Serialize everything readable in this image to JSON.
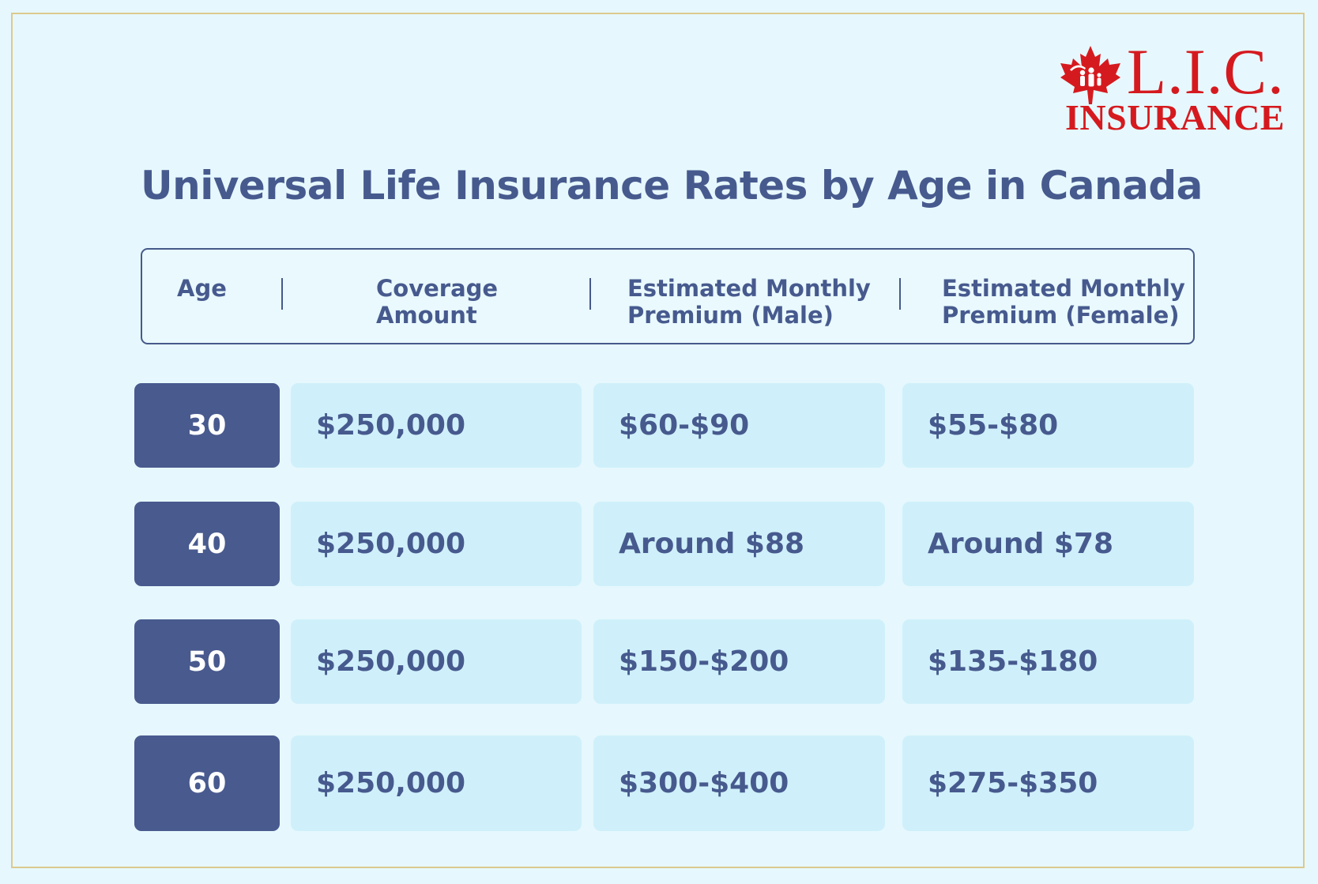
{
  "logo": {
    "top_text": "L.I.C.",
    "bottom_text": "INSURANCE",
    "icon": "maple-leaf-family-icon"
  },
  "title": "Universal Life Insurance Rates by Age in Canada",
  "table": {
    "headers": {
      "age": "Age",
      "coverage_line1": "Coverage",
      "coverage_line2": "Amount",
      "male_line1": "Estimated Monthly",
      "male_line2": "Premium (Male)",
      "female_line1": "Estimated Monthly",
      "female_line2": "Premium (Female)"
    },
    "rows": [
      {
        "age": "30",
        "coverage": "$250,000",
        "male": "$60-$90",
        "female": "$55-$80"
      },
      {
        "age": "40",
        "coverage": "$250,000",
        "male": "Around $88",
        "female": "Around $78"
      },
      {
        "age": "50",
        "coverage": "$250,000",
        "male": "$150-$200",
        "female": "$135-$180"
      },
      {
        "age": "60",
        "coverage": "$250,000",
        "male": "$300-$400",
        "female": "$275-$350"
      }
    ]
  },
  "colors": {
    "background": "#e6f8fd",
    "frame": "#dcc98f",
    "accent": "#475a8e",
    "cell": "#cff0fa",
    "logo_red": "#d51a1f"
  }
}
